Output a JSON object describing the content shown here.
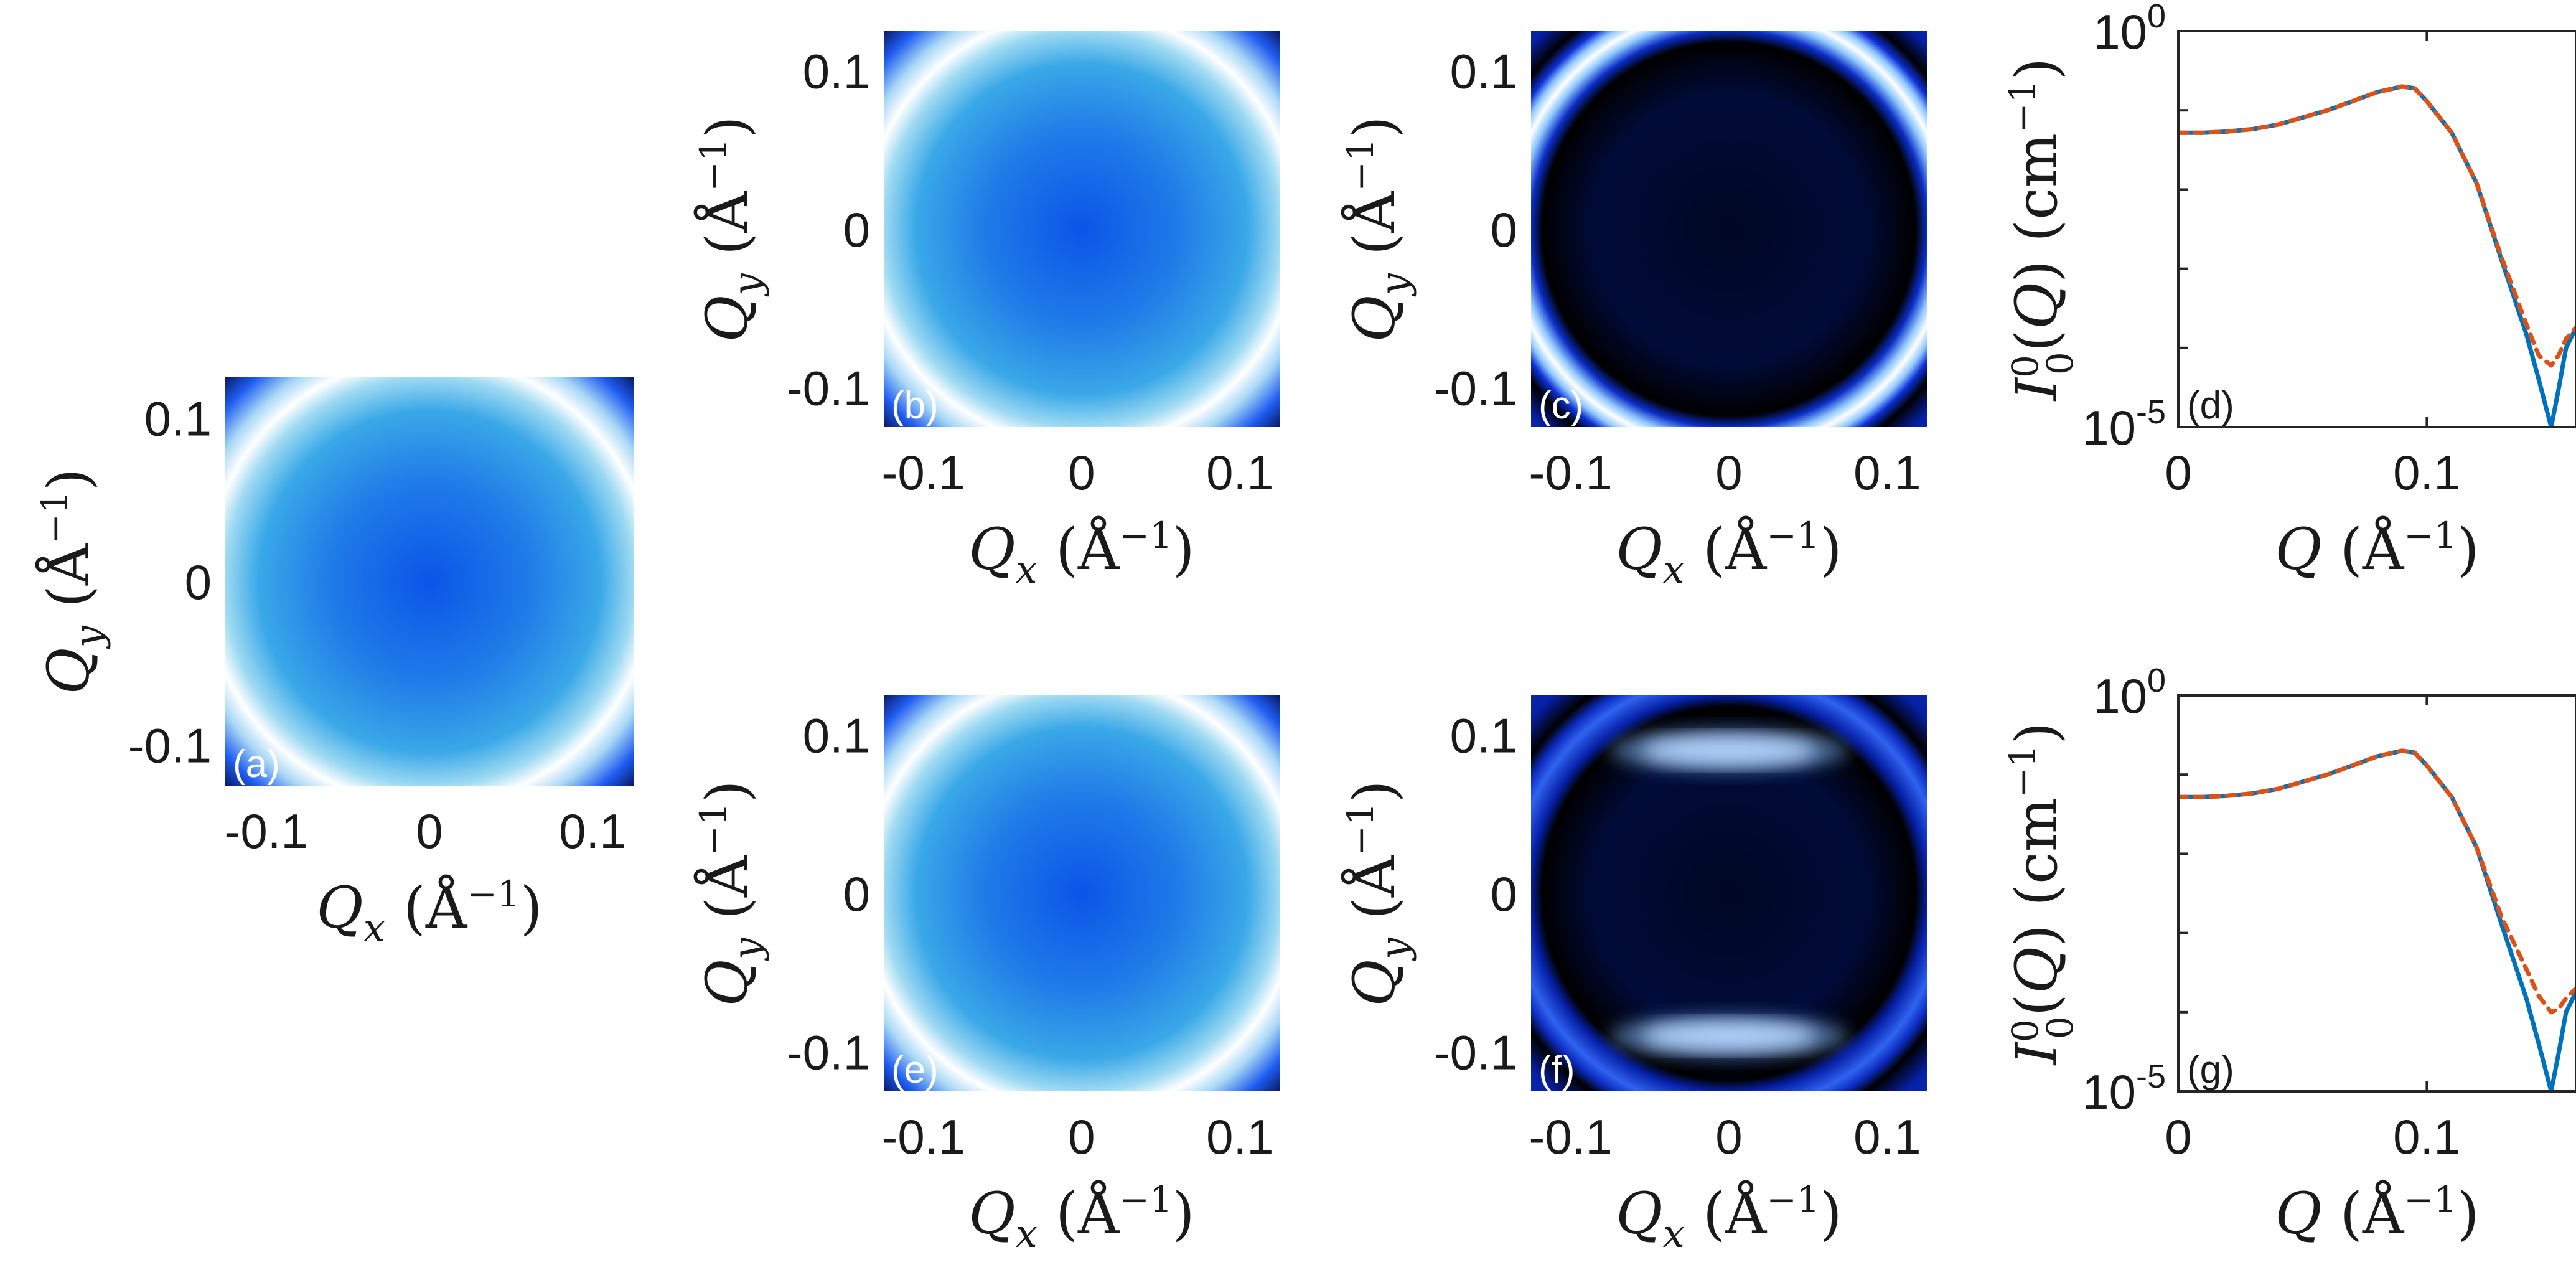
{
  "chart_data": [
    {
      "id": "a",
      "type": "heatmap",
      "panel_label": "(a)",
      "xlabel": "Q_x (Å^-1)",
      "ylabel": "Q_y (Å^-1)",
      "xlim": [
        -0.125,
        0.125
      ],
      "ylim": [
        -0.125,
        0.125
      ],
      "x_ticks": [
        {
          "value": -0.1,
          "label": "-0.1"
        },
        {
          "value": 0,
          "label": "0"
        },
        {
          "value": 0.1,
          "label": "0.1"
        }
      ],
      "y_ticks": [
        {
          "value": -0.1,
          "label": "-0.1"
        },
        {
          "value": 0,
          "label": "0"
        },
        {
          "value": 0.1,
          "label": "0.1"
        }
      ],
      "pattern": "broad ring",
      "ring_radius": 0.088,
      "anisotropy": 0
    },
    {
      "id": "b",
      "type": "heatmap",
      "panel_label": "(b)",
      "xlabel": "Q_x (Å^-1)",
      "ylabel": "Q_y (Å^-1)",
      "xlim": [
        -0.125,
        0.125
      ],
      "ylim": [
        -0.125,
        0.125
      ],
      "x_ticks": [
        {
          "value": -0.1,
          "label": "-0.1"
        },
        {
          "value": 0,
          "label": "0"
        },
        {
          "value": 0.1,
          "label": "0.1"
        }
      ],
      "y_ticks": [
        {
          "value": -0.1,
          "label": "-0.1"
        },
        {
          "value": 0,
          "label": "0"
        },
        {
          "value": 0.1,
          "label": "0.1"
        }
      ],
      "pattern": "broad ring",
      "ring_radius": 0.088,
      "anisotropy": 0
    },
    {
      "id": "c",
      "type": "heatmap",
      "panel_label": "(c)",
      "xlabel": "Q_x (Å^-1)",
      "ylabel": "Q_y (Å^-1)",
      "xlim": [
        -0.125,
        0.125
      ],
      "ylim": [
        -0.125,
        0.125
      ],
      "x_ticks": [
        {
          "value": -0.1,
          "label": "-0.1"
        },
        {
          "value": 0,
          "label": "0"
        },
        {
          "value": 0.1,
          "label": "0.1"
        }
      ],
      "y_ticks": [
        {
          "value": -0.1,
          "label": "-0.1"
        },
        {
          "value": 0,
          "label": "0"
        },
        {
          "value": 0.1,
          "label": "0.1"
        }
      ],
      "pattern": "sharp ring",
      "ring_radius": 0.092,
      "anisotropy": 0
    },
    {
      "id": "d",
      "type": "line",
      "panel_label": "(d)",
      "xlabel": "Q (Å^-1)",
      "ylabel": "I_0^0(Q) (cm^-1)",
      "xlim": [
        0,
        0.16
      ],
      "ylim": [
        1e-05,
        1
      ],
      "yscale": "log",
      "x_ticks": [
        {
          "value": 0,
          "label": "0"
        },
        {
          "value": 0.1,
          "label": "0.1"
        }
      ],
      "y_ticks": [
        {
          "value": 1,
          "label": "10",
          "exp": "0"
        },
        {
          "value": 1e-05,
          "label": "10",
          "exp": "-5"
        }
      ],
      "series": [
        {
          "style": "solid",
          "color": "#0072BD",
          "x": [
            0,
            0.01,
            0.02,
            0.03,
            0.04,
            0.05,
            0.06,
            0.07,
            0.08,
            0.09,
            0.095,
            0.1,
            0.11,
            0.12,
            0.13,
            0.14,
            0.145,
            0.15,
            0.153,
            0.156,
            0.16
          ],
          "y": [
            0.052,
            0.052,
            0.054,
            0.058,
            0.066,
            0.081,
            0.1,
            0.13,
            0.17,
            0.2,
            0.19,
            0.13,
            0.052,
            0.012,
            0.0013,
            0.00015,
            4e-05,
            1e-05,
            3e-05,
            0.0001,
            0.00018
          ]
        },
        {
          "style": "dashed",
          "color": "#D95319",
          "x": [
            0,
            0.01,
            0.02,
            0.03,
            0.04,
            0.05,
            0.06,
            0.07,
            0.08,
            0.09,
            0.095,
            0.1,
            0.11,
            0.12,
            0.13,
            0.14,
            0.145,
            0.15,
            0.153,
            0.156,
            0.16
          ],
          "y": [
            0.052,
            0.052,
            0.054,
            0.058,
            0.066,
            0.081,
            0.1,
            0.13,
            0.17,
            0.2,
            0.19,
            0.13,
            0.052,
            0.012,
            0.0014,
            0.0002,
            8e-05,
            6e-05,
            8e-05,
            0.00013,
            0.00018
          ]
        }
      ]
    },
    {
      "id": "e",
      "type": "heatmap",
      "panel_label": "(e)",
      "xlabel": "Q_x (Å^-1)",
      "ylabel": "Q_y (Å^-1)",
      "xlim": [
        -0.125,
        0.125
      ],
      "ylim": [
        -0.125,
        0.125
      ],
      "x_ticks": [
        {
          "value": -0.1,
          "label": "-0.1"
        },
        {
          "value": 0,
          "label": "0"
        },
        {
          "value": 0.1,
          "label": "0.1"
        }
      ],
      "y_ticks": [
        {
          "value": -0.1,
          "label": "-0.1"
        },
        {
          "value": 0,
          "label": "0"
        },
        {
          "value": 0.1,
          "label": "0.1"
        }
      ],
      "pattern": "broad ring",
      "ring_radius": 0.088,
      "anisotropy": 0
    },
    {
      "id": "f",
      "type": "heatmap",
      "panel_label": "(f)",
      "xlabel": "Q_x (Å^-1)",
      "ylabel": "Q_y (Å^-1)",
      "xlim": [
        -0.125,
        0.125
      ],
      "ylim": [
        -0.125,
        0.125
      ],
      "x_ticks": [
        {
          "value": -0.1,
          "label": "-0.1"
        },
        {
          "value": 0,
          "label": "0"
        },
        {
          "value": 0.1,
          "label": "0.1"
        }
      ],
      "y_ticks": [
        {
          "value": -0.1,
          "label": "-0.1"
        },
        {
          "value": 0,
          "label": "0"
        },
        {
          "value": 0.1,
          "label": "0.1"
        }
      ],
      "pattern": "sharp ring, brighter at top and bottom",
      "ring_radius": 0.092,
      "anisotropy": 1
    },
    {
      "id": "g",
      "type": "line",
      "panel_label": "(g)",
      "xlabel": "Q (Å^-1)",
      "ylabel": "I_0^0(Q) (cm^-1)",
      "xlim": [
        0,
        0.16
      ],
      "ylim": [
        1e-05,
        1
      ],
      "yscale": "log",
      "x_ticks": [
        {
          "value": 0,
          "label": "0"
        },
        {
          "value": 0.1,
          "label": "0.1"
        }
      ],
      "y_ticks": [
        {
          "value": 1,
          "label": "10",
          "exp": "0"
        },
        {
          "value": 1e-05,
          "label": "10",
          "exp": "-5"
        }
      ],
      "series": [
        {
          "style": "solid",
          "color": "#0072BD",
          "x": [
            0,
            0.01,
            0.02,
            0.03,
            0.04,
            0.05,
            0.06,
            0.07,
            0.08,
            0.09,
            0.095,
            0.1,
            0.11,
            0.12,
            0.13,
            0.14,
            0.145,
            0.15,
            0.153,
            0.156,
            0.16
          ],
          "y": [
            0.052,
            0.052,
            0.054,
            0.058,
            0.066,
            0.081,
            0.1,
            0.13,
            0.17,
            0.2,
            0.19,
            0.13,
            0.052,
            0.012,
            0.0013,
            0.00015,
            4e-05,
            1e-05,
            3e-05,
            0.0001,
            0.00018
          ]
        },
        {
          "style": "dashed",
          "color": "#D95319",
          "x": [
            0,
            0.01,
            0.02,
            0.03,
            0.04,
            0.05,
            0.06,
            0.07,
            0.08,
            0.09,
            0.095,
            0.1,
            0.11,
            0.12,
            0.13,
            0.14,
            0.145,
            0.15,
            0.153,
            0.156,
            0.16
          ],
          "y": [
            0.052,
            0.052,
            0.054,
            0.058,
            0.066,
            0.081,
            0.1,
            0.13,
            0.17,
            0.2,
            0.19,
            0.13,
            0.052,
            0.012,
            0.0016,
            0.00035,
            0.00016,
            0.0001,
            0.00011,
            0.00015,
            0.0002
          ]
        }
      ]
    }
  ]
}
